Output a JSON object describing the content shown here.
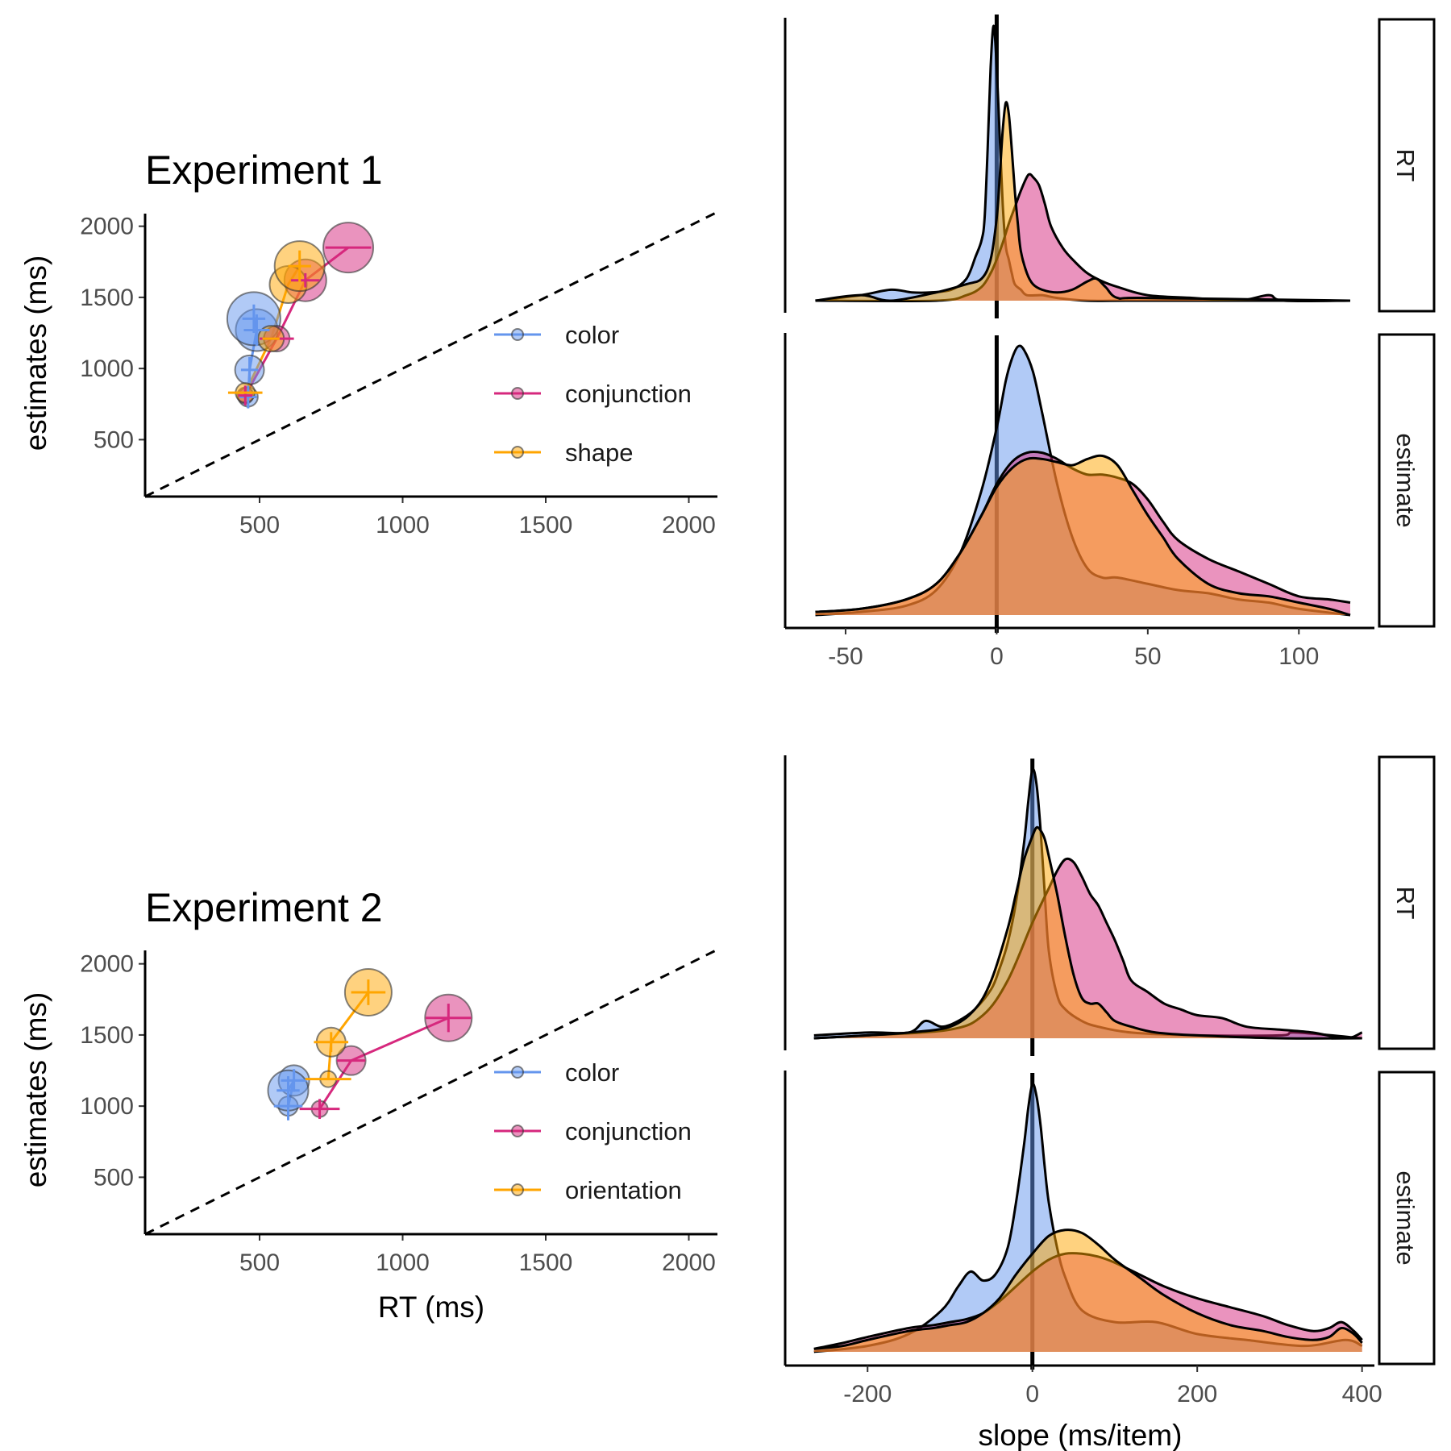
{
  "chart_data": [
    {
      "type": "scatter",
      "title": "Experiment 1",
      "xlabel": "",
      "ylabel": "estimates (ms)",
      "xlim": [
        100,
        2100
      ],
      "ylim": [
        100,
        2100
      ],
      "xticks": [
        500,
        1000,
        1500,
        2000
      ],
      "yticks": [
        500,
        1000,
        1500,
        2000
      ],
      "reference_line": "y = x (dashed)",
      "legend": {
        "placement": "right",
        "entries": [
          "color",
          "conjunction",
          "shape"
        ]
      },
      "series": [
        {
          "name": "color",
          "color": "#6495ed",
          "points": [
            {
              "x": 460,
              "y": 800,
              "xerr": 30,
              "yerr": 80,
              "size": 12
            },
            {
              "x": 465,
              "y": 990,
              "xerr": 30,
              "yerr": 90,
              "size": 18
            },
            {
              "x": 490,
              "y": 1270,
              "xerr": 45,
              "yerr": 110,
              "size": 26
            },
            {
              "x": 480,
              "y": 1350,
              "xerr": 40,
              "yerr": 100,
              "size": 33
            }
          ]
        },
        {
          "name": "conjunction",
          "color": "#d6287d",
          "points": [
            {
              "x": 450,
              "y": 810,
              "xerr": 25,
              "yerr": 70,
              "size": 10
            },
            {
              "x": 560,
              "y": 1210,
              "xerr": 60,
              "yerr": 0,
              "size": 16
            },
            {
              "x": 660,
              "y": 1620,
              "xerr": 50,
              "yerr": 50,
              "size": 26
            },
            {
              "x": 810,
              "y": 1850,
              "xerr": 80,
              "yerr": 0,
              "size": 31
            }
          ]
        },
        {
          "name": "shape",
          "color": "#ffa500",
          "points": [
            {
              "x": 450,
              "y": 830,
              "xerr": 60,
              "yerr": 0,
              "size": 12
            },
            {
              "x": 540,
              "y": 1210,
              "xerr": 30,
              "yerr": 0,
              "size": 16
            },
            {
              "x": 600,
              "y": 1590,
              "xerr": 0,
              "yerr": 0,
              "size": 23
            },
            {
              "x": 640,
              "y": 1720,
              "xerr": 40,
              "yerr": 110,
              "size": 31
            }
          ]
        }
      ]
    },
    {
      "type": "area",
      "title": "",
      "xlabel": "",
      "ylabel": "",
      "xlim": [
        -70,
        125
      ],
      "xticks": [
        -50,
        0,
        50,
        100
      ],
      "facets": [
        "RT",
        "estimate"
      ],
      "vline_at": 0,
      "series": [
        {
          "name": "color",
          "color": "#6495ed",
          "facet": "RT",
          "x": [
            -60,
            -45,
            -35,
            -28,
            -22,
            -15,
            -10,
            -7,
            -5,
            -4,
            -3,
            -2,
            -1,
            0,
            1,
            2,
            3,
            4,
            5,
            6,
            8,
            10,
            15,
            20,
            30,
            50,
            117
          ],
          "y": [
            0.0,
            0.02,
            0.04,
            0.03,
            0.03,
            0.04,
            0.08,
            0.16,
            0.22,
            0.3,
            0.55,
            0.85,
            1.0,
            0.85,
            0.6,
            0.35,
            0.2,
            0.15,
            0.1,
            0.06,
            0.04,
            0.02,
            0.02,
            0.01,
            0.0,
            0.0,
            0.0
          ]
        },
        {
          "name": "conjunction",
          "color": "#d6287d",
          "facet": "RT",
          "x": [
            -60,
            -20,
            -10,
            -5,
            -2,
            0,
            2,
            4,
            6,
            8,
            10,
            11,
            12,
            14,
            16,
            18,
            22,
            26,
            30,
            35,
            40,
            50,
            65,
            80,
            90,
            95,
            117
          ],
          "y": [
            0.0,
            0.0,
            0.02,
            0.05,
            0.1,
            0.15,
            0.21,
            0.28,
            0.34,
            0.4,
            0.45,
            0.46,
            0.45,
            0.42,
            0.35,
            0.27,
            0.19,
            0.14,
            0.1,
            0.07,
            0.05,
            0.02,
            0.01,
            0.0,
            0.02,
            0.0,
            0.0
          ]
        },
        {
          "name": "shape",
          "color": "#ffa500",
          "facet": "RT",
          "x": [
            -60,
            -45,
            -35,
            -20,
            -10,
            -5,
            -2,
            0,
            1,
            2,
            3,
            4,
            5,
            6,
            7,
            8,
            10,
            12,
            15,
            20,
            25,
            30,
            33,
            36,
            40,
            50,
            117
          ],
          "y": [
            0.0,
            0.02,
            0.0,
            0.03,
            0.06,
            0.08,
            0.15,
            0.3,
            0.45,
            0.62,
            0.72,
            0.68,
            0.55,
            0.4,
            0.28,
            0.18,
            0.1,
            0.06,
            0.04,
            0.03,
            0.04,
            0.07,
            0.08,
            0.05,
            0.01,
            0.01,
            0.0
          ]
        },
        {
          "name": "color",
          "color": "#6495ed",
          "facet": "estimate",
          "x": [
            -60,
            -45,
            -30,
            -20,
            -12,
            -5,
            0,
            3,
            5,
            7,
            9,
            12,
            15,
            20,
            25,
            30,
            35,
            40,
            50,
            60,
            70,
            80,
            90,
            100,
            117
          ],
          "y": [
            0.0,
            0.01,
            0.03,
            0.08,
            0.2,
            0.4,
            0.6,
            0.75,
            0.82,
            0.86,
            0.85,
            0.78,
            0.65,
            0.42,
            0.25,
            0.15,
            0.12,
            0.12,
            0.1,
            0.08,
            0.07,
            0.05,
            0.04,
            0.02,
            0.0
          ]
        },
        {
          "name": "conjunction",
          "color": "#d6287d",
          "facet": "estimate",
          "x": [
            -60,
            -45,
            -30,
            -20,
            -12,
            -5,
            0,
            5,
            10,
            15,
            20,
            25,
            30,
            35,
            40,
            45,
            50,
            55,
            60,
            70,
            80,
            90,
            100,
            110,
            117
          ],
          "y": [
            0.01,
            0.02,
            0.05,
            0.1,
            0.2,
            0.32,
            0.42,
            0.49,
            0.52,
            0.52,
            0.5,
            0.47,
            0.45,
            0.45,
            0.44,
            0.42,
            0.37,
            0.3,
            0.24,
            0.18,
            0.14,
            0.1,
            0.06,
            0.05,
            0.04
          ]
        },
        {
          "name": "shape",
          "color": "#ffa500",
          "facet": "estimate",
          "x": [
            -60,
            -45,
            -30,
            -20,
            -12,
            -5,
            0,
            5,
            10,
            15,
            20,
            25,
            30,
            35,
            40,
            45,
            50,
            55,
            60,
            70,
            80,
            90,
            100,
            110,
            117
          ],
          "y": [
            0.01,
            0.02,
            0.05,
            0.1,
            0.2,
            0.32,
            0.41,
            0.47,
            0.5,
            0.5,
            0.49,
            0.48,
            0.5,
            0.51,
            0.48,
            0.4,
            0.32,
            0.25,
            0.18,
            0.1,
            0.07,
            0.06,
            0.04,
            0.02,
            0.0
          ]
        }
      ]
    },
    {
      "type": "scatter",
      "title": "Experiment 2",
      "xlabel": "RT (ms)",
      "ylabel": "estimates (ms)",
      "xlim": [
        100,
        2100
      ],
      "ylim": [
        100,
        2100
      ],
      "xticks": [
        500,
        1000,
        1500,
        2000
      ],
      "yticks": [
        500,
        1000,
        1500,
        2000
      ],
      "reference_line": "y = x (dashed)",
      "legend": {
        "placement": "right",
        "entries": [
          "color",
          "conjunction",
          "orientation"
        ]
      },
      "series": [
        {
          "name": "color",
          "color": "#6495ed",
          "points": [
            {
              "x": 600,
              "y": 1000,
              "xerr": 50,
              "yerr": 100,
              "size": 12
            },
            {
              "x": 620,
              "y": 1180,
              "xerr": 45,
              "yerr": 80,
              "size": 19
            },
            {
              "x": 600,
              "y": 1110,
              "xerr": 40,
              "yerr": 100,
              "size": 25
            }
          ]
        },
        {
          "name": "conjunction",
          "color": "#d6287d",
          "points": [
            {
              "x": 710,
              "y": 980,
              "xerr": 70,
              "yerr": 70,
              "size": 10
            },
            {
              "x": 820,
              "y": 1320,
              "xerr": 50,
              "yerr": 0,
              "size": 18
            },
            {
              "x": 1160,
              "y": 1620,
              "xerr": 80,
              "yerr": 100,
              "size": 29
            }
          ]
        },
        {
          "name": "orientation",
          "color": "#ffa500",
          "points": [
            {
              "x": 740,
              "y": 1190,
              "xerr": 80,
              "yerr": 0,
              "size": 10
            },
            {
              "x": 750,
              "y": 1450,
              "xerr": 60,
              "yerr": 70,
              "size": 18
            },
            {
              "x": 880,
              "y": 1800,
              "xerr": 60,
              "yerr": 90,
              "size": 29
            }
          ]
        }
      ]
    },
    {
      "type": "area",
      "title": "",
      "xlabel": "slope (ms/item)",
      "ylabel": "",
      "xlim": [
        -300,
        415
      ],
      "xticks": [
        -200,
        0,
        200,
        400
      ],
      "facets": [
        "RT",
        "estimate"
      ],
      "vline_at": 0,
      "series": [
        {
          "name": "color",
          "color": "#6495ed",
          "facet": "RT",
          "x": [
            -265,
            -200,
            -150,
            -130,
            -110,
            -90,
            -70,
            -50,
            -40,
            -30,
            -20,
            -10,
            -5,
            0,
            5,
            10,
            15,
            20,
            30,
            40,
            60,
            80,
            120,
            200,
            300,
            320,
            400
          ],
          "y": [
            0.01,
            0.02,
            0.02,
            0.06,
            0.04,
            0.06,
            0.1,
            0.17,
            0.24,
            0.33,
            0.47,
            0.68,
            0.82,
            0.93,
            0.88,
            0.72,
            0.5,
            0.3,
            0.15,
            0.1,
            0.06,
            0.04,
            0.02,
            0.01,
            0.01,
            0.02,
            0.0
          ]
        },
        {
          "name": "conjunction",
          "color": "#d6287d",
          "facet": "RT",
          "x": [
            -265,
            -200,
            -100,
            -60,
            -30,
            0,
            20,
            30,
            40,
            50,
            60,
            70,
            80,
            90,
            100,
            110,
            120,
            140,
            160,
            180,
            200,
            230,
            260,
            300,
            340,
            380,
            400
          ],
          "y": [
            0.0,
            0.01,
            0.03,
            0.08,
            0.2,
            0.4,
            0.52,
            0.58,
            0.62,
            0.61,
            0.56,
            0.5,
            0.46,
            0.4,
            0.34,
            0.27,
            0.2,
            0.16,
            0.12,
            0.1,
            0.08,
            0.07,
            0.04,
            0.03,
            0.02,
            0.0,
            0.02
          ]
        },
        {
          "name": "orientation",
          "color": "#ffa500",
          "facet": "RT",
          "x": [
            -265,
            -200,
            -150,
            -100,
            -70,
            -50,
            -30,
            -20,
            -10,
            0,
            5,
            10,
            15,
            20,
            30,
            40,
            50,
            60,
            70,
            80,
            90,
            100,
            120,
            150,
            200,
            300,
            400
          ],
          "y": [
            0.0,
            0.01,
            0.02,
            0.04,
            0.1,
            0.2,
            0.38,
            0.5,
            0.62,
            0.7,
            0.73,
            0.72,
            0.69,
            0.63,
            0.5,
            0.35,
            0.22,
            0.14,
            0.12,
            0.12,
            0.09,
            0.06,
            0.04,
            0.02,
            0.01,
            0.0,
            0.0
          ]
        },
        {
          "name": "color",
          "color": "#6495ed",
          "facet": "estimate",
          "x": [
            -265,
            -200,
            -150,
            -110,
            -90,
            -75,
            -60,
            -45,
            -30,
            -20,
            -10,
            -5,
            0,
            5,
            10,
            15,
            20,
            30,
            40,
            60,
            100,
            150,
            200,
            260,
            330,
            380,
            400
          ],
          "y": [
            0.0,
            0.02,
            0.06,
            0.14,
            0.22,
            0.27,
            0.24,
            0.26,
            0.35,
            0.5,
            0.7,
            0.82,
            0.9,
            0.86,
            0.76,
            0.62,
            0.5,
            0.35,
            0.25,
            0.14,
            0.1,
            0.1,
            0.06,
            0.04,
            0.02,
            0.04,
            0.02
          ]
        },
        {
          "name": "conjunction",
          "color": "#d6287d",
          "facet": "estimate",
          "x": [
            -265,
            -230,
            -200,
            -150,
            -120,
            -100,
            -80,
            -60,
            -40,
            -20,
            0,
            20,
            40,
            60,
            80,
            100,
            130,
            160,
            200,
            240,
            280,
            310,
            340,
            360,
            375,
            390,
            400
          ],
          "y": [
            0.01,
            0.03,
            0.05,
            0.08,
            0.09,
            0.1,
            0.11,
            0.13,
            0.17,
            0.22,
            0.27,
            0.31,
            0.33,
            0.33,
            0.32,
            0.3,
            0.26,
            0.22,
            0.18,
            0.15,
            0.12,
            0.09,
            0.07,
            0.08,
            0.1,
            0.07,
            0.04
          ]
        },
        {
          "name": "orientation",
          "color": "#ffa500",
          "facet": "estimate",
          "x": [
            -265,
            -230,
            -200,
            -150,
            -120,
            -100,
            -80,
            -60,
            -40,
            -20,
            0,
            20,
            40,
            60,
            80,
            100,
            130,
            160,
            200,
            240,
            280,
            310,
            340,
            360,
            375,
            390,
            400
          ],
          "y": [
            0.01,
            0.02,
            0.04,
            0.07,
            0.08,
            0.09,
            0.1,
            0.13,
            0.18,
            0.26,
            0.33,
            0.39,
            0.41,
            0.4,
            0.36,
            0.31,
            0.25,
            0.19,
            0.13,
            0.09,
            0.07,
            0.05,
            0.04,
            0.05,
            0.08,
            0.06,
            0.03
          ]
        }
      ]
    }
  ]
}
